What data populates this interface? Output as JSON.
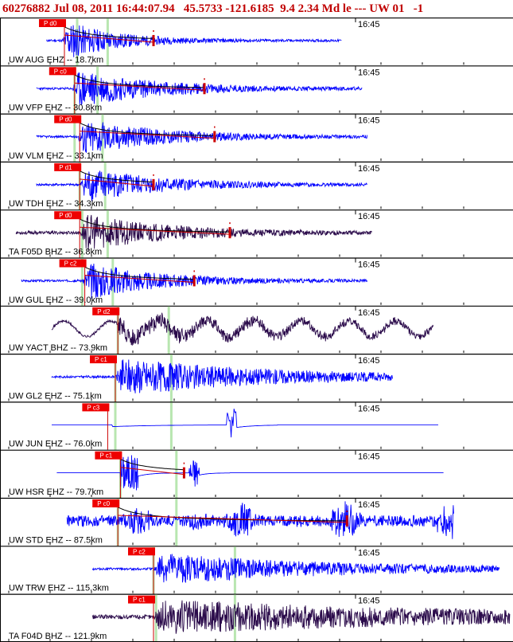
{
  "header": {
    "text": "60276882 Jul 08, 2011 16:44:07.94   45.5733 -121.6185  9.4 2.34 Md le --- UW 01   -1"
  },
  "colors": {
    "header_text": "#c00000",
    "trace_blue": "#0000ff",
    "trace_dark": "#2a0a4a",
    "pick_box": "#ee0000",
    "pick_line": "#cc0000",
    "theoretical_arrival": "#b8e6b0",
    "coda_decay_curve": "#000000",
    "coda_fit": "#cc0000",
    "separator": "#000000"
  },
  "time_marker": "16:45",
  "channels": [
    {
      "label": "UW AUG EHZ -- 18.7km",
      "pick": "P d0",
      "trace_color": "blue",
      "extent": [
        0.09,
        0.67
      ],
      "pick_pos": 0.125,
      "green_lines": [
        0.15,
        0.21
      ],
      "onset": 0.12,
      "bg_amp": 0.05,
      "burst_amp": 0.95,
      "decay": 0.1,
      "coda_end": 0.3,
      "seed": 11,
      "has_coda": true
    },
    {
      "label": "UW VFP EHZ -- 30.8km",
      "pick": "P c0",
      "trace_color": "blue",
      "extent": [
        0.07,
        0.71
      ],
      "pick_pos": 0.145,
      "green_lines": [
        0.145,
        0.19
      ],
      "onset": 0.14,
      "bg_amp": 0.05,
      "burst_amp": 0.9,
      "decay": 0.16,
      "coda_end": 0.4,
      "seed": 23,
      "has_coda": true
    },
    {
      "label": "UW VLM EHZ -- 33.1km",
      "pick": "P d0",
      "trace_color": "blue",
      "extent": [
        0.07,
        0.72
      ],
      "pick_pos": 0.155,
      "green_lines": [
        0.145,
        0.2
      ],
      "onset": 0.15,
      "bg_amp": 0.05,
      "burst_amp": 0.85,
      "decay": 0.16,
      "coda_end": 0.42,
      "seed": 37,
      "has_coda": true
    },
    {
      "label": "UW TDH EHZ -- 34.3km",
      "pick": "P d1",
      "trace_color": "blue",
      "extent": [
        0.07,
        0.72
      ],
      "pick_pos": 0.155,
      "green_lines": [
        0.155,
        0.205
      ],
      "onset": 0.155,
      "bg_amp": 0.05,
      "burst_amp": 0.85,
      "decay": 0.15,
      "coda_end": 0.3,
      "seed": 41,
      "has_coda": true
    },
    {
      "label": "TA F05D BHZ -- 36.8km",
      "pick": "P d0",
      "trace_color": "dark",
      "extent": [
        0.03,
        0.73
      ],
      "pick_pos": 0.155,
      "green_lines": [
        0.16,
        0.21
      ],
      "onset": 0.155,
      "bg_amp": 0.07,
      "burst_amp": 0.85,
      "decay": 0.16,
      "coda_end": 0.45,
      "seed": 53,
      "has_coda": true
    },
    {
      "label": "UW GUL EHZ -- 39.0km",
      "pick": "P c2",
      "trace_color": "blue",
      "extent": [
        0.04,
        0.72
      ],
      "pick_pos": 0.165,
      "green_lines": [
        0.16,
        0.22
      ],
      "onset": 0.16,
      "bg_amp": 0.05,
      "burst_amp": 0.9,
      "decay": 0.14,
      "coda_end": 0.38,
      "seed": 67,
      "has_coda": true
    },
    {
      "label": "UW YACT BHZ -- 73.9km",
      "pick": "P d2",
      "trace_color": "dark",
      "extent": [
        0.1,
        0.85
      ],
      "pick_pos": 0.23,
      "green_lines": [
        0.23,
        0.33
      ],
      "onset": 0.23,
      "bg_amp": 0.5,
      "burst_amp": 0.7,
      "decay": 0.25,
      "coda_end": 0.0,
      "seed": 71,
      "has_coda": false,
      "wavy": true
    },
    {
      "label": "UW GL2 EHZ -- 75.1km",
      "pick": "P c1",
      "trace_color": "blue",
      "extent": [
        0.1,
        0.77
      ],
      "pick_pos": 0.225,
      "green_lines": [
        0.225,
        0.335
      ],
      "onset": 0.225,
      "bg_amp": 0.05,
      "burst_amp": 0.85,
      "decay": 0.3,
      "coda_end": 0.0,
      "seed": 83,
      "has_coda": false
    },
    {
      "label": "UW JUN EHZ -- 76.0km",
      "pick": "P c3",
      "trace_color": "blue",
      "extent": [
        0.1,
        0.86
      ],
      "pick_pos": 0.21,
      "green_lines": [
        0.225,
        0.335
      ],
      "onset": 0.45,
      "bg_amp": 0.01,
      "burst_amp": 0.95,
      "decay": 0.02,
      "coda_end": 0.0,
      "seed": 97,
      "has_coda": false,
      "spike": true
    },
    {
      "label": "UW HSR EHZ -- 79.7km",
      "pick": "P c1",
      "trace_color": "blue",
      "extent": [
        0.11,
        0.87
      ],
      "pick_pos": 0.235,
      "green_lines": [
        0.235,
        0.345
      ],
      "onset": 0.235,
      "bg_amp": 0.01,
      "burst_amp": 0.85,
      "decay": 0.04,
      "coda_end": 0.36,
      "seed": 101,
      "has_coda": true,
      "hsr": true
    },
    {
      "label": "UW STD EHZ -- 87.5km",
      "pick": "P c0",
      "trace_color": "blue",
      "extent": [
        0.13,
        0.89
      ],
      "pick_pos": 0.23,
      "green_lines": [
        0.23,
        0.345
      ],
      "onset": 0.23,
      "bg_amp": 0.25,
      "burst_amp": 0.9,
      "decay": 0.3,
      "coda_end": 0.68,
      "seed": 109,
      "has_coda": true,
      "bursty": true
    },
    {
      "label": "UW TRW EHZ -- 115.3km",
      "pick": "P c2",
      "trace_color": "blue",
      "extent": [
        0.18,
        0.98
      ],
      "pick_pos": 0.3,
      "green_lines": [
        0.3,
        0.46
      ],
      "onset": 0.3,
      "bg_amp": 0.05,
      "burst_amp": 0.7,
      "decay": 0.35,
      "coda_end": 0.0,
      "seed": 113,
      "has_coda": false
    },
    {
      "label": "TA F04D BHZ -- 121.9km",
      "pick": "P c1",
      "trace_color": "dark",
      "extent": [
        0.18,
        1.0
      ],
      "pick_pos": 0.3,
      "green_lines": [
        0.305,
        0.46
      ],
      "onset": 0.3,
      "bg_amp": 0.1,
      "burst_amp": 0.75,
      "decay": 0.6,
      "coda_end": 0.0,
      "seed": 127,
      "has_coda": false
    }
  ]
}
